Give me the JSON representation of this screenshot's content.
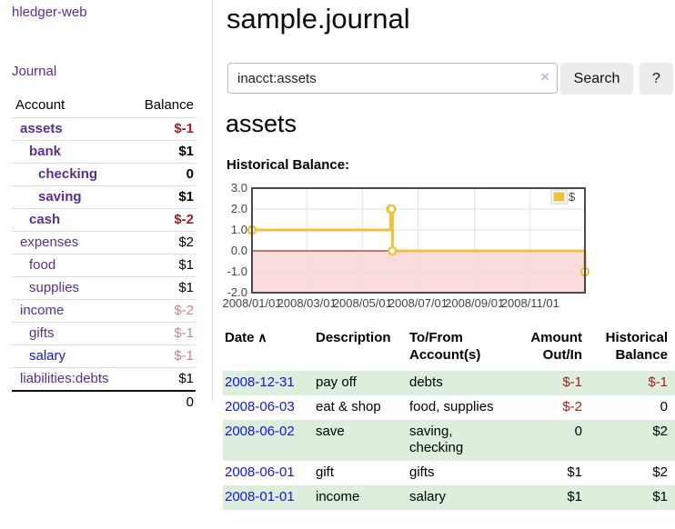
{
  "colors": {
    "purple": "#5c2d91",
    "link-blue": "#1414dd",
    "neg-strong": "#a31f1f",
    "neg-soft": "#c98585",
    "row-green": "#ddeedd",
    "divider": "#d9d9d9",
    "btn-bg": "#ececec",
    "input-border": "#bbbbbb",
    "clear-icon": "#c5badb"
  },
  "app_title": "hledger-web",
  "sidebar": {
    "journal_link": "Journal",
    "account_header": "Account",
    "balance_header": "Balance",
    "accounts": [
      {
        "name": "assets",
        "balance": "$-1",
        "level": 1,
        "bold": true,
        "balance_style": "neg-strong"
      },
      {
        "name": "bank",
        "balance": "$1",
        "level": 2,
        "bold": true,
        "balance_style": "pos"
      },
      {
        "name": "checking",
        "balance": "0",
        "level": 3,
        "bold": true,
        "balance_style": "pos"
      },
      {
        "name": "saving",
        "balance": "$1",
        "level": 3,
        "bold": true,
        "balance_style": "pos"
      },
      {
        "name": "cash",
        "balance": "$-2",
        "level": 2,
        "bold": true,
        "balance_style": "neg-strong"
      },
      {
        "name": "expenses",
        "balance": "$2",
        "level": 1,
        "bold": false,
        "balance_style": "pos"
      },
      {
        "name": "food",
        "balance": "$1",
        "level": 2,
        "bold": false,
        "balance_style": "pos"
      },
      {
        "name": "supplies",
        "balance": "$1",
        "level": 2,
        "bold": false,
        "balance_style": "pos"
      },
      {
        "name": "income",
        "balance": "$-2",
        "level": 1,
        "bold": false,
        "balance_style": "neg-soft"
      },
      {
        "name": "gifts",
        "balance": "$-1",
        "level": 2,
        "bold": false,
        "balance_style": "neg-soft"
      },
      {
        "name": "salary",
        "balance": "$-1",
        "level": 2,
        "bold": false,
        "balance_style": "neg-soft",
        "link_style": "unvisited"
      },
      {
        "name": "liabilities:debts",
        "balance": "$1",
        "level": 1,
        "bold": false,
        "balance_style": "pos"
      }
    ],
    "total": "0"
  },
  "main": {
    "title": "sample.journal",
    "search": {
      "value": "inacct:assets",
      "clear_icon_char": "×",
      "button_label": "Search",
      "help_label": "?"
    },
    "account_title": "assets",
    "section_label": "Historical Balance:"
  },
  "chart_data": {
    "type": "line",
    "title": "Historical Balance",
    "step": "after",
    "legend": {
      "position": "top-right",
      "entries": [
        {
          "label": "$",
          "color": "#EDC240"
        }
      ]
    },
    "series": [
      {
        "name": "$",
        "points": [
          {
            "date": "2008-01-01",
            "day": 0,
            "value": 1
          },
          {
            "date": "2008-06-01",
            "day": 152,
            "value": 2
          },
          {
            "date": "2008-06-02",
            "day": 153,
            "value": 2
          },
          {
            "date": "2008-06-03",
            "day": 154,
            "value": 0
          },
          {
            "date": "2008-12-31",
            "day": 365,
            "value": -1
          }
        ]
      }
    ],
    "xticks": [
      {
        "label": "2008/01/01",
        "day": 0
      },
      {
        "label": "2008/03/01",
        "day": 60
      },
      {
        "label": "2008/05/01",
        "day": 121
      },
      {
        "label": "2008/07/01",
        "day": 182
      },
      {
        "label": "2008/09/01",
        "day": 244
      },
      {
        "label": "2008/11/01",
        "day": 305
      }
    ],
    "yticks": [
      {
        "label": "3.0",
        "value": 3
      },
      {
        "label": "2.0",
        "value": 2
      },
      {
        "label": "1.0",
        "value": 1
      },
      {
        "label": "0.0",
        "value": 0
      },
      {
        "label": "-1.0",
        "value": -1
      },
      {
        "label": "-2.0",
        "value": -2
      }
    ],
    "ylim": [
      -2,
      3
    ],
    "xlim_days": [
      0,
      365
    ],
    "grid": true,
    "line_color": "#EDC240",
    "marker_fill": "#ffffff",
    "negative_region_color": "#fbdcdc",
    "zero_line_color": "#8b0000",
    "grid_color": "#e2e2e2",
    "border_color": "#4a4a4a",
    "tick_color": "#444444",
    "legend_border": "#cccccc"
  },
  "register": {
    "headers": [
      {
        "text": "Date",
        "align": "left",
        "sortable": true
      },
      {
        "text": "Description",
        "align": "left"
      },
      {
        "text": "To/From Account(s)",
        "align": "left"
      },
      {
        "text": "Amount Out/In",
        "align": "right"
      },
      {
        "text": "Historical Balance",
        "align": "right"
      }
    ],
    "sort_icon_char": "∧",
    "rows": [
      {
        "date": "2008-12-31",
        "description": "pay off",
        "accounts": "debts",
        "amount": "$-1",
        "balance": "$-1",
        "amount_neg": true,
        "balance_neg": true
      },
      {
        "date": "2008-06-03",
        "description": "eat & shop",
        "accounts": "food, supplies",
        "amount": "$-2",
        "balance": "0",
        "amount_neg": true,
        "balance_neg": false
      },
      {
        "date": "2008-06-02",
        "description": "save",
        "accounts": "saving, checking",
        "amount": "0",
        "balance": "$2",
        "amount_neg": false,
        "balance_neg": false
      },
      {
        "date": "2008-06-01",
        "description": "gift",
        "accounts": "gifts",
        "amount": "$1",
        "balance": "$2",
        "amount_neg": false,
        "balance_neg": false
      },
      {
        "date": "2008-01-01",
        "description": "income",
        "accounts": "salary",
        "amount": "$1",
        "balance": "$1",
        "amount_neg": false,
        "balance_neg": false
      }
    ]
  }
}
